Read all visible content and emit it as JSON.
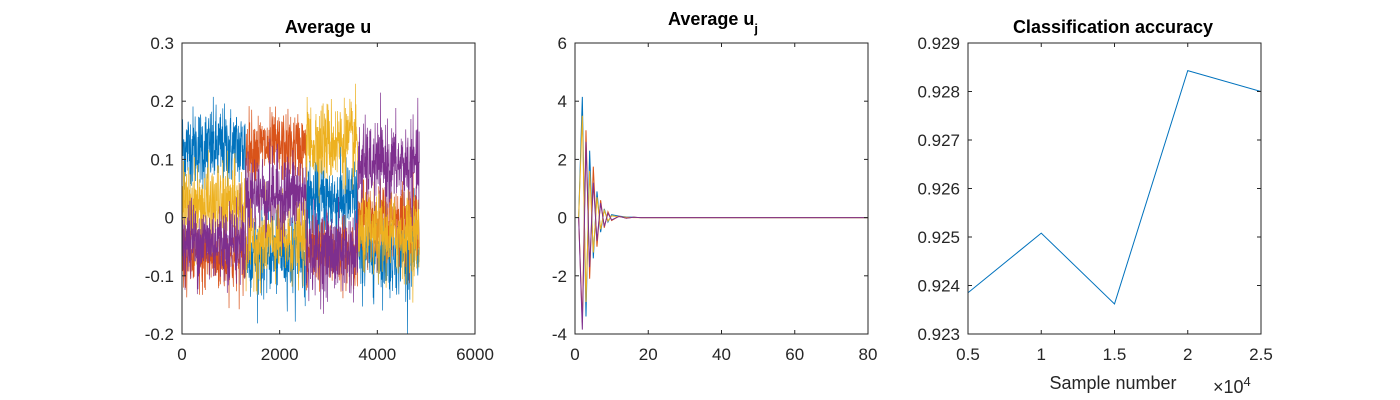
{
  "colors": {
    "blue": "#0072BD",
    "orange": "#D95319",
    "yellow": "#EDB120",
    "purple": "#7E2F8E",
    "axis": "#262626",
    "background": "#ffffff"
  },
  "chart_data": [
    {
      "type": "line",
      "title": "Average u",
      "xlabel": "",
      "ylabel": "",
      "xlim": [
        0,
        6000
      ],
      "ylim": [
        -0.2,
        0.3
      ],
      "xticks": [
        0,
        2000,
        4000,
        6000
      ],
      "xtick_labels": [
        "0",
        "2000",
        "4000",
        "6000"
      ],
      "yticks": [
        -0.2,
        -0.1,
        0,
        0.1,
        0.2,
        0.3
      ],
      "ytick_labels": [
        "-0.2",
        "-0.1",
        "0",
        "0.1",
        "0.2",
        "0.3"
      ],
      "grid": false,
      "noise_note": "dense noisy traces; four series, block-structured means",
      "x_max": 4860,
      "segments": [
        0,
        1300,
        2540,
        3600,
        4860
      ],
      "series": [
        {
          "color_key": "blue",
          "segment_means": [
            0.12,
            -0.06,
            0.03,
            -0.06
          ],
          "noise": 0.035
        },
        {
          "color_key": "orange",
          "segment_means": [
            -0.07,
            0.12,
            -0.06,
            0.0
          ],
          "noise": 0.03
        },
        {
          "color_key": "yellow",
          "segment_means": [
            0.02,
            -0.04,
            0.13,
            -0.03
          ],
          "noise": 0.035
        },
        {
          "color_key": "purple",
          "segment_means": [
            -0.04,
            0.04,
            -0.06,
            0.09
          ],
          "noise": 0.035
        }
      ]
    },
    {
      "type": "line",
      "title": "Average u",
      "title_subscript": "j",
      "xlabel": "",
      "ylabel": "",
      "xlim": [
        0,
        80
      ],
      "ylim": [
        -4,
        6
      ],
      "xticks": [
        0,
        20,
        40,
        60,
        80
      ],
      "xtick_labels": [
        "0",
        "20",
        "40",
        "60",
        "80"
      ],
      "yticks": [
        -4,
        -2,
        0,
        2,
        4,
        6
      ],
      "ytick_labels": [
        "-4",
        "-2",
        "0",
        "2",
        "4",
        "6"
      ],
      "grid": false,
      "series": [
        {
          "color_key": "blue",
          "x": [
            1,
            2,
            3,
            4,
            5,
            6,
            7,
            8,
            9,
            10,
            12,
            14,
            16,
            18,
            20,
            25,
            30,
            80
          ],
          "y": [
            0,
            4.15,
            -3.4,
            2.3,
            -1.4,
            0.9,
            -0.5,
            0.3,
            -0.15,
            0.1,
            0.05,
            0.02,
            0.01,
            0,
            0,
            0,
            0,
            0
          ]
        },
        {
          "color_key": "orange",
          "x": [
            1,
            2,
            3,
            4,
            5,
            6,
            7,
            8,
            9,
            10,
            12,
            14,
            16,
            18,
            20,
            25,
            30,
            80
          ],
          "y": [
            0,
            -3.6,
            3.0,
            -2.1,
            1.75,
            -1.0,
            0.6,
            -0.35,
            0.2,
            -0.1,
            0.05,
            -0.02,
            0.01,
            0,
            0,
            0,
            0,
            0
          ]
        },
        {
          "color_key": "yellow",
          "x": [
            1,
            2,
            3,
            4,
            5,
            6,
            7,
            8,
            9,
            10,
            12,
            14,
            16,
            18,
            20,
            25,
            30,
            80
          ],
          "y": [
            0,
            3.5,
            -2.9,
            1.6,
            -1.2,
            0.7,
            -0.4,
            0.25,
            -0.12,
            0.06,
            0.03,
            0.01,
            0,
            0,
            0,
            0,
            0,
            0
          ]
        },
        {
          "color_key": "purple",
          "x": [
            1,
            2,
            3,
            4,
            5,
            6,
            7,
            8,
            9,
            10,
            12,
            14,
            16,
            18,
            20,
            25,
            30,
            80
          ],
          "y": [
            0,
            -3.85,
            2.6,
            -1.7,
            1.2,
            -0.8,
            0.5,
            -0.3,
            0.15,
            -0.08,
            0.04,
            -0.02,
            0.01,
            0,
            0,
            0,
            0,
            0
          ]
        }
      ]
    },
    {
      "type": "line",
      "title": "Classification accuracy",
      "xlabel": "Sample number",
      "ylabel": "",
      "x_exponent_label": "×10",
      "x_exponent_power": "4",
      "xlim": [
        0.5,
        2.5
      ],
      "ylim": [
        0.923,
        0.929
      ],
      "xticks": [
        0.5,
        1,
        1.5,
        2,
        2.5
      ],
      "xtick_labels": [
        "0.5",
        "1",
        "1.5",
        "2",
        "2.5"
      ],
      "yticks": [
        0.923,
        0.924,
        0.925,
        0.926,
        0.927,
        0.928,
        0.929
      ],
      "ytick_labels": [
        "0.923",
        "0.924",
        "0.925",
        "0.926",
        "0.927",
        "0.928",
        "0.929"
      ],
      "grid": false,
      "series": [
        {
          "color_key": "blue",
          "x": [
            0.5,
            1,
            1.5,
            2,
            2.5
          ],
          "y": [
            0.92385,
            0.92508,
            0.92362,
            0.92843,
            0.928
          ]
        }
      ]
    }
  ]
}
